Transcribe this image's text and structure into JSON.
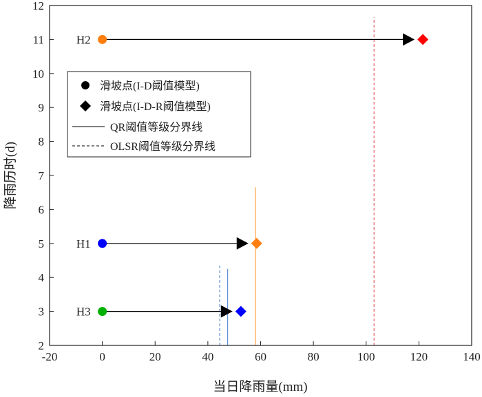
{
  "chart_data": {
    "type": "scatter",
    "xlabel": "当日降雨量(mm)",
    "ylabel": "降雨历时(d)",
    "xlim": [
      -20,
      140
    ],
    "ylim": [
      2,
      12
    ],
    "xticks": [
      -20,
      0,
      20,
      40,
      60,
      80,
      100,
      120,
      140
    ],
    "yticks": [
      2,
      3,
      4,
      5,
      6,
      7,
      8,
      9,
      10,
      11,
      12
    ],
    "grid": false,
    "legend_position": "upper-left",
    "legend": [
      {
        "label": "滑坡点(I-D阈值模型)",
        "marker": "circle"
      },
      {
        "label": "滑坡点(I-D-R阈值模型)",
        "marker": "diamond"
      },
      {
        "label": "QR阈值等级分界线",
        "style": "solid"
      },
      {
        "label": "OLSR阈值等级分界线",
        "style": "dashed"
      }
    ],
    "points": [
      {
        "name": "H2",
        "id_model": {
          "x": 0,
          "y": 11,
          "color": "#ff7f0e"
        },
        "idr_model": {
          "x": 121.5,
          "y": 11,
          "color": "#ff0000"
        }
      },
      {
        "name": "H1",
        "id_model": {
          "x": 0,
          "y": 5,
          "color": "#0000ff"
        },
        "idr_model": {
          "x": 58.5,
          "y": 5,
          "color": "#ff7f0e"
        }
      },
      {
        "name": "H3",
        "id_model": {
          "x": 0,
          "y": 3,
          "color": "#00b000"
        },
        "idr_model": {
          "x": 52.5,
          "y": 3,
          "color": "#0000ff"
        }
      }
    ],
    "threshold_lines": [
      {
        "type": "OLSR",
        "style": "dashed",
        "x": 103,
        "y_range": [
          2,
          11.65
        ],
        "color": "#e86060"
      },
      {
        "type": "QR",
        "style": "solid",
        "x": 58,
        "y_range": [
          2,
          6.65
        ],
        "color": "#ffa040"
      },
      {
        "type": "QR",
        "style": "solid",
        "x": 47.5,
        "y_range": [
          2,
          4.25
        ],
        "color": "#5a8fd6"
      },
      {
        "type": "OLSR",
        "style": "dashed",
        "x": 44.5,
        "y_range": [
          2,
          4.4
        ],
        "color": "#5a8fd6"
      }
    ]
  }
}
